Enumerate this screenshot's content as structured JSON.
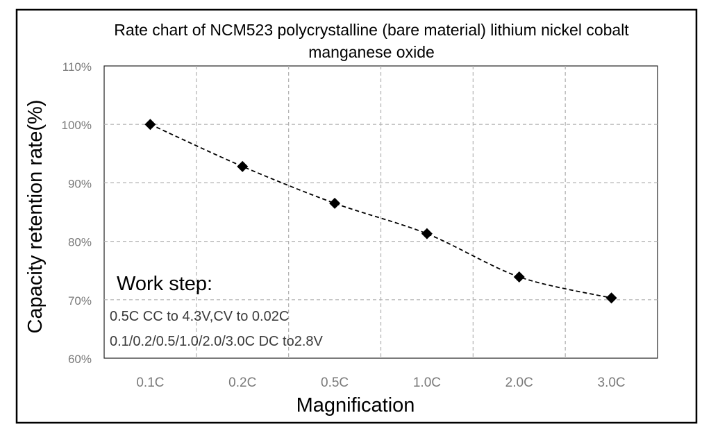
{
  "chart_data": {
    "type": "line",
    "title": "Rate chart of NCM523 polycrystalline (bare material) lithium nickel cobalt manganese oxide",
    "title_lines": [
      "Rate chart of NCM523 polycrystalline (bare material) lithium nickel cobalt",
      "manganese oxide"
    ],
    "xlabel": "Magnification",
    "ylabel": "Capacity retention rate(%)",
    "categories": [
      "0.1C",
      "0.2C",
      "0.5C",
      "1.0C",
      "2.0C",
      "3.0C"
    ],
    "series": [
      {
        "name": "",
        "values": [
          100,
          92.8,
          86.5,
          81.3,
          73.9,
          70.3
        ]
      }
    ],
    "ylim": [
      60,
      110
    ],
    "yticks": [
      60,
      70,
      80,
      90,
      100,
      110
    ],
    "ytick_labels": [
      "60%",
      "70%",
      "80%",
      "90%",
      "100%",
      "110%"
    ],
    "grid": true,
    "line_style": "dashed",
    "marker": "diamond",
    "annotation": {
      "heading": "Work step:",
      "lines": [
        "0.5C CC to 4.3V,CV to 0.02C",
        "0.1/0.2/0.5/1.0/2.0/3.0C DC to2.8V"
      ]
    },
    "colors": {
      "series": "#000000",
      "grid": "#b0b0b0",
      "tick_text": "#7a7a7a",
      "frame": "#000000"
    }
  }
}
